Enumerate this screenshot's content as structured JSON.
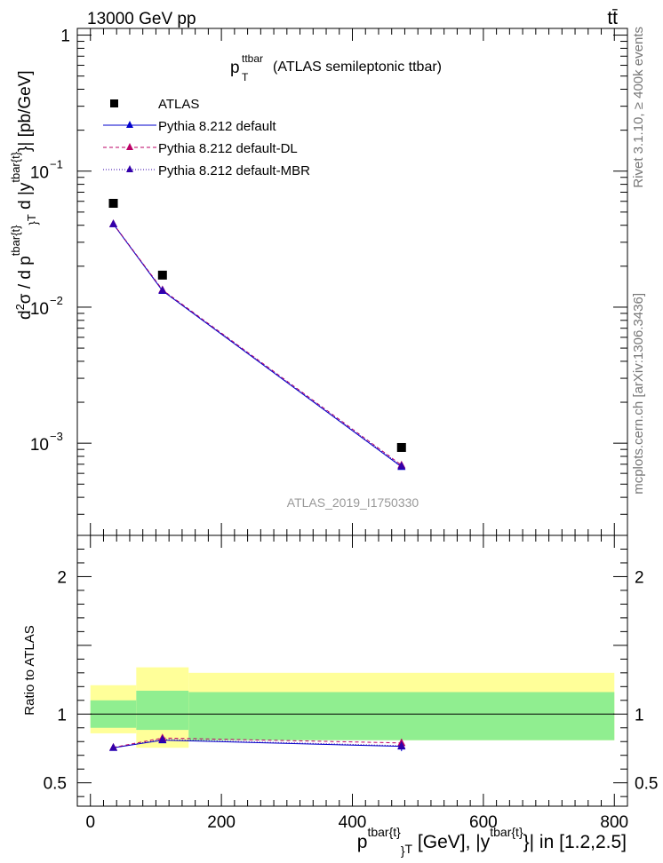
{
  "header": {
    "left": "13000 GeV pp",
    "right": "tt̄"
  },
  "side_labels": {
    "rivet": "Rivet 3.1.10, ≥ 400k events",
    "mcplots": "mcplots.cern.ch [arXiv:1306.3436]"
  },
  "chart_data": [
    {
      "type": "line",
      "panel": "main",
      "title": {
        "main": "p",
        "sup": "ttbar",
        "sub": "T",
        "rest": " (ATLAS semileptonic ttbar)"
      },
      "watermark": "ATLAS_2019_I1750330",
      "ylabel": "d²σ / d p^{tbar{t}}_T d |y^{tbar{t}}| [pb/GeV]",
      "yscale": "log",
      "ylim": [
        0.00021,
        1.12
      ],
      "xlim": [
        -20,
        820
      ],
      "ytick_labels": {
        "1": "1",
        "0.1": "10",
        "0.01": "10",
        "0.001": "10"
      },
      "ytick_exponents": {
        "0.1": "−1",
        "0.01": "−2",
        "0.001": "−3"
      },
      "legend_position": "top-left",
      "series": [
        {
          "name": "ATLAS",
          "style": "data",
          "color": "#000000",
          "x": [
            35,
            110,
            475
          ],
          "y": [
            0.058,
            0.0172,
            0.00093
          ]
        },
        {
          "name": "Pythia 8.212 default",
          "style": "solid",
          "color": "#0000cc",
          "x": [
            35,
            110,
            475
          ],
          "y": [
            0.0408,
            0.0132,
            0.00067
          ]
        },
        {
          "name": "Pythia 8.212 default-DL",
          "style": "dashed",
          "color": "#bb0066",
          "x": [
            35,
            110,
            475
          ],
          "y": [
            0.041,
            0.0134,
            0.00069
          ]
        },
        {
          "name": "Pythia 8.212 default-MBR",
          "style": "dotted",
          "color": "#3300aa",
          "x": [
            35,
            110,
            475
          ],
          "y": [
            0.0409,
            0.0133,
            0.00068
          ]
        }
      ]
    },
    {
      "type": "line",
      "panel": "ratio",
      "ylabel": "Ratio to ATLAS",
      "xlabel": "p^{tbar{t}}_T [GeV], |y^{tbar{t}}| in [1.2,2.5]",
      "xlim": [
        -20,
        820
      ],
      "ylim": [
        0.33,
        2.3
      ],
      "xticks": [
        0,
        200,
        400,
        600,
        800
      ],
      "xtick_labels": [
        "0",
        "200",
        "400",
        "600",
        "800"
      ],
      "yticks": [
        0.5,
        1,
        2
      ],
      "ytick_labels": [
        "0.5",
        "1",
        "2"
      ],
      "bands": [
        {
          "x0": 0,
          "x1": 70,
          "inner": [
            0.9,
            1.1
          ],
          "outer": [
            0.86,
            1.21
          ]
        },
        {
          "x0": 70,
          "x1": 150,
          "inner": [
            0.885,
            1.17
          ],
          "outer": [
            0.755,
            1.34
          ]
        },
        {
          "x0": 150,
          "x1": 800,
          "inner": [
            0.81,
            1.16
          ],
          "outer": [
            0.81,
            1.3
          ]
        }
      ],
      "band_colors": {
        "inner": "#90ee90",
        "outer": "#ffff99"
      },
      "series": [
        {
          "name": "Pythia 8.212 default",
          "style": "solid",
          "color": "#0000cc",
          "x": [
            35,
            110,
            475
          ],
          "y": [
            0.755,
            0.81,
            0.765
          ],
          "err": [
            0.01,
            0.02,
            0.035
          ]
        },
        {
          "name": "Pythia 8.212 default-DL",
          "style": "dashed",
          "color": "#bb0066",
          "x": [
            35,
            110,
            475
          ],
          "y": [
            0.757,
            0.826,
            0.79
          ],
          "err": [
            0.01,
            0.02,
            0.03
          ]
        },
        {
          "name": "Pythia 8.212 default-MBR",
          "style": "dotted",
          "color": "#3300aa",
          "x": [
            35,
            110,
            475
          ],
          "y": [
            0.756,
            0.815,
            0.77
          ],
          "err": [
            0.01,
            0.02,
            0.03
          ]
        }
      ]
    }
  ]
}
